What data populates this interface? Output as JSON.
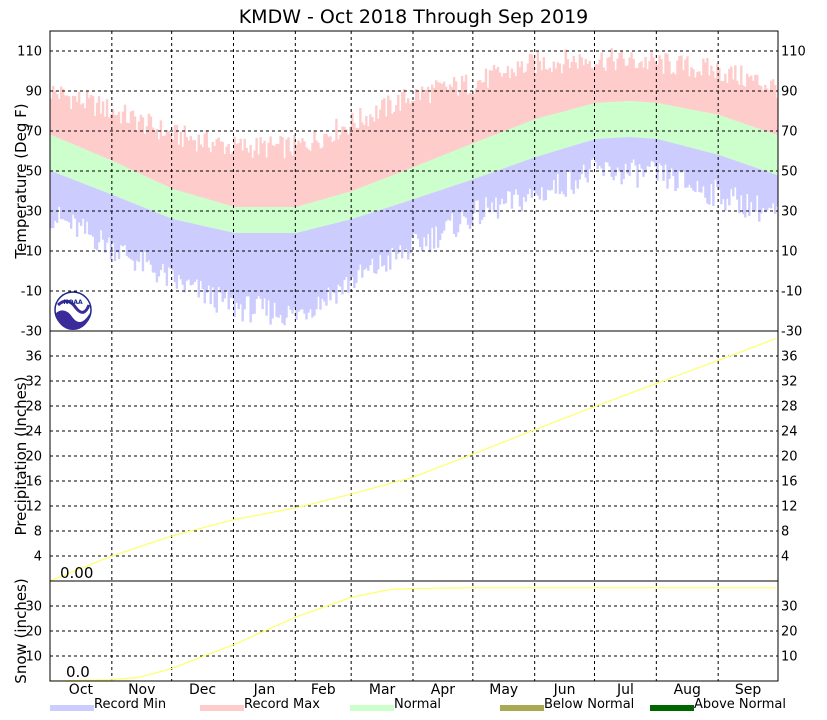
{
  "title": "KMDW - Oct 2018 Through Sep 2019",
  "colors": {
    "record_min": "#ccccff",
    "record_max": "#ffcccc",
    "normal": "#ccffcc",
    "below_normal": "#aaaa55",
    "above_normal": "#006600",
    "precip_line": "#ffff66",
    "snow_line": "#ffff66"
  },
  "icons": {
    "logo": "noaa-logo"
  },
  "logo_text": "NOAA",
  "months": [
    "Oct",
    "Nov",
    "Dec",
    "Jan",
    "Feb",
    "Mar",
    "Apr",
    "May",
    "Jun",
    "Jul",
    "Aug",
    "Sep"
  ],
  "legend": [
    {
      "label": "Record Min",
      "color": "#ccccff"
    },
    {
      "label": "Record Max",
      "color": "#ffcccc"
    },
    {
      "label": "Normal",
      "color": "#ccffcc"
    },
    {
      "label": "Below Normal",
      "color": "#aaaa55"
    },
    {
      "label": "Above Normal",
      "color": "#006600"
    }
  ],
  "chart_data": [
    {
      "type": "area",
      "name": "temperature",
      "ylabel": "Temperature (Deg F)",
      "ylim": [
        -30,
        120
      ],
      "yticks": [
        -10,
        10,
        30,
        50,
        70,
        90,
        110
      ],
      "x_month_starts": [
        0,
        31,
        61,
        92,
        123,
        151,
        182,
        212,
        243,
        273,
        304,
        335
      ],
      "x_days": 365,
      "grid": true,
      "normal_high": {
        "x": [
          0,
          31,
          61,
          92,
          123,
          151,
          182,
          212,
          243,
          273,
          290,
          304,
          335,
          364
        ],
        "y": [
          68,
          55,
          41,
          32,
          32,
          40,
          52,
          64,
          76,
          84,
          85,
          84,
          78,
          68
        ]
      },
      "normal_low": {
        "x": [
          0,
          31,
          61,
          92,
          123,
          151,
          182,
          212,
          243,
          273,
          290,
          304,
          335,
          364
        ],
        "y": [
          50,
          38,
          26,
          19,
          19,
          26,
          36,
          46,
          57,
          66,
          67,
          66,
          58,
          48
        ]
      },
      "record_max_approx": {
        "x": [
          0,
          31,
          61,
          92,
          123,
          151,
          182,
          212,
          243,
          273,
          304,
          335,
          364
        ],
        "y": [
          90,
          80,
          68,
          62,
          62,
          74,
          88,
          94,
          104,
          106,
          104,
          100,
          92
        ]
      },
      "record_min_approx": {
        "x": [
          0,
          31,
          61,
          92,
          123,
          151,
          182,
          212,
          243,
          273,
          304,
          335,
          364
        ],
        "y": [
          28,
          12,
          -5,
          -18,
          -22,
          -5,
          12,
          28,
          38,
          50,
          48,
          38,
          28
        ]
      }
    },
    {
      "type": "line",
      "name": "precipitation",
      "ylabel": "Precipitation (Inches)",
      "ylim": [
        0,
        40
      ],
      "yticks": [
        4,
        8,
        12,
        16,
        20,
        24,
        28,
        32,
        36
      ],
      "grid": true,
      "annotation": "0.00",
      "series": [
        {
          "x": [
            0,
            31,
            61,
            92,
            123,
            151,
            182,
            212,
            243,
            273,
            304,
            335,
            364
          ],
          "y": [
            0,
            4.0,
            7.2,
            9.8,
            11.7,
            13.9,
            16.6,
            20.3,
            24.2,
            27.9,
            31.6,
            35.3,
            38.8
          ]
        }
      ]
    },
    {
      "type": "line",
      "name": "snow",
      "ylabel": "Snow (inches)",
      "ylim": [
        0,
        40
      ],
      "yticks": [
        10,
        20,
        30
      ],
      "grid": true,
      "annotation": "0.0",
      "series": [
        {
          "x": [
            0,
            31,
            45,
            61,
            92,
            123,
            151,
            170,
            182,
            212,
            243,
            364
          ],
          "y": [
            0,
            0.5,
            1.5,
            5,
            14.5,
            25.5,
            33.5,
            36.5,
            37,
            37.3,
            37.3,
            37.3
          ]
        }
      ]
    }
  ]
}
